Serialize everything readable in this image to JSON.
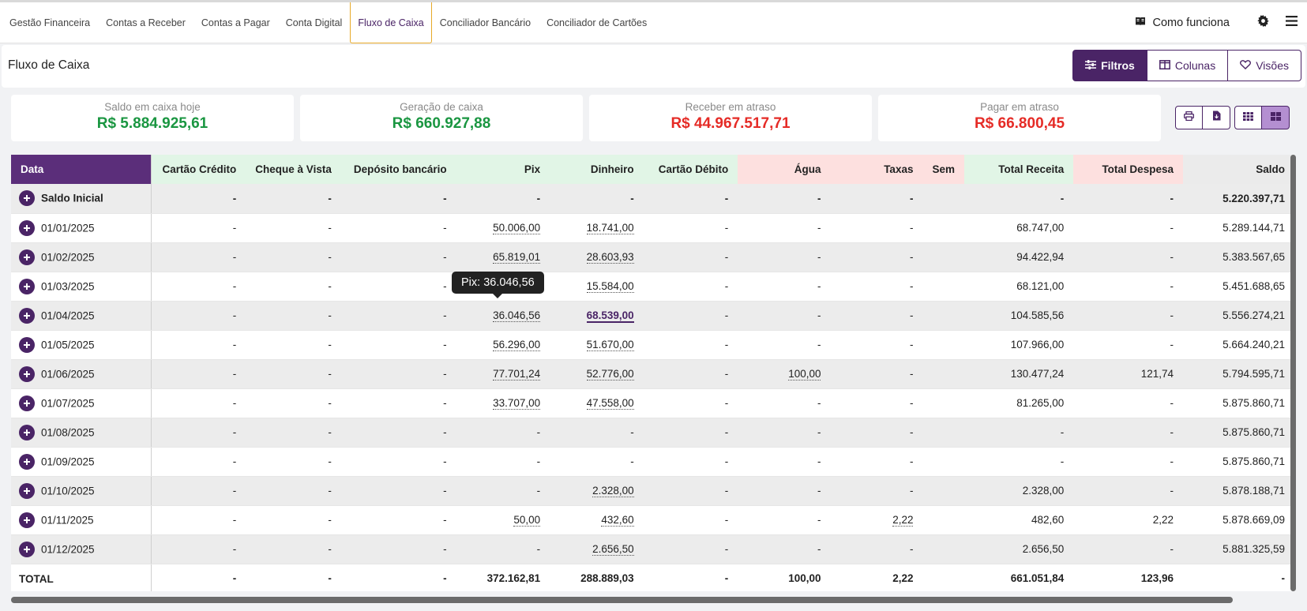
{
  "nav": {
    "tabs": [
      "Gestão Financeira",
      "Contas a Receber",
      "Contas a Pagar",
      "Conta Digital",
      "Fluxo de Caixa",
      "Conciliador Bancário",
      "Conciliador de Cartões"
    ],
    "active_index": 4,
    "how_label": "Como funciona",
    "icons": [
      "book-icon",
      "gear-icon",
      "menu-icon"
    ]
  },
  "page": {
    "title": "Fluxo de Caixa",
    "buttons": {
      "filters": "Filtros",
      "columns": "Colunas",
      "views": "Visões"
    }
  },
  "kpis": [
    {
      "label": "Saldo em caixa hoje",
      "value": "R$ 5.884.925,61",
      "tone": "green"
    },
    {
      "label": "Geração de caixa",
      "value": "R$ 660.927,88",
      "tone": "green"
    },
    {
      "label": "Receber em atraso",
      "value": "R$ 44.967.517,71",
      "tone": "red"
    },
    {
      "label": "Pagar em atraso",
      "value": "R$ 66.800,45",
      "tone": "red"
    }
  ],
  "colors": {
    "brand": "#4a2466",
    "header_purple": "#5b2e7a",
    "green": "#1a9641",
    "red": "#e52b26",
    "receita_bg": "#e1f5e6",
    "despesa_bg": "#fde0df"
  },
  "table": {
    "columns": [
      {
        "label": "Data",
        "group": "data"
      },
      {
        "label": "Cartão Crédito",
        "group": "g"
      },
      {
        "label": "Cheque à Vista",
        "group": "g"
      },
      {
        "label": "Depósito bancário",
        "group": "g"
      },
      {
        "label": "Pix",
        "group": "g"
      },
      {
        "label": "Dinheiro",
        "group": "g"
      },
      {
        "label": "Cartão Débito",
        "group": "g"
      },
      {
        "label": "Água",
        "group": "r"
      },
      {
        "label": "Taxas",
        "group": "r"
      },
      {
        "label": "Sem",
        "group": "r"
      },
      {
        "label": "Total Receita",
        "group": "g"
      },
      {
        "label": "Total Despesa",
        "group": "r"
      },
      {
        "label": "Saldo",
        "group": "s"
      }
    ],
    "rows": [
      {
        "label": "Saldo Inicial",
        "kind": "initial",
        "cells": [
          "-",
          "-",
          "-",
          "-",
          "-",
          "-",
          "-",
          "-",
          "",
          "-",
          "-",
          "5.220.397,71"
        ]
      },
      {
        "label": "01/01/2025",
        "cells": [
          "-",
          "-",
          "-",
          "50.006,00",
          "18.741,00",
          "-",
          "-",
          "-",
          "",
          "68.747,00",
          "-",
          "5.289.144,71"
        ]
      },
      {
        "label": "01/02/2025",
        "cells": [
          "-",
          "-",
          "-",
          "65.819,01",
          "28.603,93",
          "-",
          "-",
          "-",
          "",
          "94.422,94",
          "-",
          "5.383.567,65"
        ]
      },
      {
        "label": "01/03/2025",
        "cells": [
          "-",
          "-",
          "-",
          "",
          "15.584,00",
          "-",
          "-",
          "-",
          "",
          "68.121,00",
          "-",
          "5.451.688,65"
        ]
      },
      {
        "label": "01/04/2025",
        "cells": [
          "-",
          "-",
          "-",
          "36.046,56",
          "68.539,00",
          "-",
          "-",
          "-",
          "",
          "104.585,56",
          "-",
          "5.556.274,21"
        ]
      },
      {
        "label": "01/05/2025",
        "cells": [
          "-",
          "-",
          "-",
          "56.296,00",
          "51.670,00",
          "-",
          "-",
          "-",
          "",
          "107.966,00",
          "-",
          "5.664.240,21"
        ]
      },
      {
        "label": "01/06/2025",
        "cells": [
          "-",
          "-",
          "-",
          "77.701,24",
          "52.776,00",
          "-",
          "100,00",
          "-",
          "",
          "130.477,24",
          "121,74",
          "5.794.595,71"
        ]
      },
      {
        "label": "01/07/2025",
        "cells": [
          "-",
          "-",
          "-",
          "33.707,00",
          "47.558,00",
          "-",
          "-",
          "-",
          "",
          "81.265,00",
          "-",
          "5.875.860,71"
        ]
      },
      {
        "label": "01/08/2025",
        "cells": [
          "-",
          "-",
          "-",
          "-",
          "-",
          "-",
          "-",
          "-",
          "",
          "-",
          "-",
          "5.875.860,71"
        ]
      },
      {
        "label": "01/09/2025",
        "cells": [
          "-",
          "-",
          "-",
          "-",
          "-",
          "-",
          "-",
          "-",
          "",
          "-",
          "-",
          "5.875.860,71"
        ]
      },
      {
        "label": "01/10/2025",
        "cells": [
          "-",
          "-",
          "-",
          "-",
          "2.328,00",
          "-",
          "-",
          "-",
          "",
          "2.328,00",
          "-",
          "5.878.188,71"
        ]
      },
      {
        "label": "01/11/2025",
        "cells": [
          "-",
          "-",
          "-",
          "50,00",
          "432,60",
          "-",
          "-",
          "2,22",
          "",
          "482,60",
          "2,22",
          "5.878.669,09"
        ]
      },
      {
        "label": "01/12/2025",
        "cells": [
          "-",
          "-",
          "-",
          "-",
          "2.656,50",
          "-",
          "-",
          "-",
          "",
          "2.656,50",
          "-",
          "5.881.325,59"
        ]
      },
      {
        "label": "TOTAL",
        "kind": "total",
        "cells": [
          "-",
          "-",
          "-",
          "372.162,81",
          "288.889,03",
          "-",
          "100,00",
          "2,22",
          "",
          "661.051,84",
          "123,96",
          "-"
        ]
      }
    ],
    "hovered": {
      "row": 4,
      "col": 4
    }
  },
  "tooltip": {
    "text": "Pix: 36.046,56"
  }
}
